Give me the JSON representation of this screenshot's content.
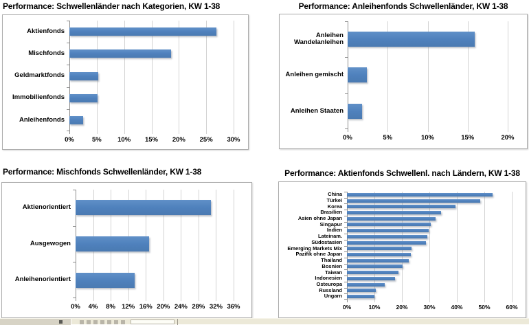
{
  "colors": {
    "bar": "#4f81bd",
    "gridline": "#d2d2d2",
    "axis": "#8c8c8c",
    "panel_border": "#ababab",
    "strip_background": "#ece9d8"
  },
  "chart_data": [
    {
      "type": "bar",
      "orientation": "horizontal",
      "title": "Performance: Schwellenländer nach Kategorien, KW 1-38",
      "categories": [
        "Aktienfonds",
        "Mischfonds",
        "Geldmarktfonds",
        "Immobilienfonds",
        "Anleihenfonds"
      ],
      "values": [
        26.9,
        18.6,
        5.3,
        5.1,
        2.5
      ],
      "xlabel": "",
      "ylabel": "",
      "xlim": [
        0,
        30
      ],
      "tick_values": [
        0,
        5,
        10,
        15,
        20,
        25,
        30
      ],
      "tick_labels": [
        "0%",
        "5%",
        "10%",
        "15%",
        "20%",
        "25%",
        "30%"
      ],
      "grid": true,
      "legend": "none"
    },
    {
      "type": "bar",
      "orientation": "horizontal",
      "title": "Performance: Anleihenfonds Schwellenländer, KW 1-38",
      "categories": [
        "Anleihen Wandelanleihen",
        "Anleihen gemischt",
        "Anleihen Staaten"
      ],
      "values": [
        15.9,
        2.4,
        1.8
      ],
      "xlabel": "",
      "ylabel": "",
      "xlim": [
        0,
        20
      ],
      "tick_values": [
        0,
        5,
        10,
        15,
        20
      ],
      "tick_labels": [
        "0%",
        "5%",
        "10%",
        "15%",
        "20%"
      ],
      "grid": true,
      "legend": "none"
    },
    {
      "type": "bar",
      "orientation": "horizontal",
      "title": "Performance: Mischfonds Schwellenländer, KW 1-38",
      "categories": [
        "Aktienorientiert",
        "Ausgewogen",
        "Anleihenorientiert"
      ],
      "values": [
        30.9,
        16.7,
        13.5
      ],
      "xlabel": "",
      "ylabel": "",
      "xlim": [
        0,
        36
      ],
      "tick_values": [
        0,
        4,
        8,
        12,
        16,
        20,
        24,
        28,
        32,
        36
      ],
      "tick_labels": [
        "0%",
        "4%",
        "8%",
        "12%",
        "16%",
        "20%",
        "24%",
        "28%",
        "32%",
        "36%"
      ],
      "grid": true,
      "legend": "none"
    },
    {
      "type": "bar",
      "orientation": "horizontal",
      "title": "Performance: Aktienfonds Schwellenl. nach Ländern, KW 1-38",
      "categories": [
        "China",
        "Türkei",
        "Korea",
        "Brasilien",
        "Asien ohne Japan",
        "Singapur",
        "Indien",
        "Lateinam.",
        "Südostasien",
        "Emerging Markets Mix",
        "Pazifik ohne Japan",
        "Thailand",
        "Bosnien",
        "Taiwan",
        "Indonesien",
        "Osteuropa",
        "Russland",
        "Ungarn"
      ],
      "values": [
        53.0,
        48.5,
        39.4,
        34.2,
        32.3,
        30.4,
        29.8,
        29.3,
        28.8,
        23.6,
        23.2,
        22.6,
        20.3,
        18.8,
        17.5,
        13.8,
        10.5,
        10.0
      ],
      "xlabel": "",
      "ylabel": "",
      "xlim": [
        0,
        60
      ],
      "tick_values": [
        0,
        10,
        20,
        30,
        40,
        50,
        60
      ],
      "tick_labels": [
        "0%",
        "10%",
        "20%",
        "30%",
        "40%",
        "50%",
        "60%"
      ],
      "grid": true,
      "legend": "none"
    }
  ]
}
